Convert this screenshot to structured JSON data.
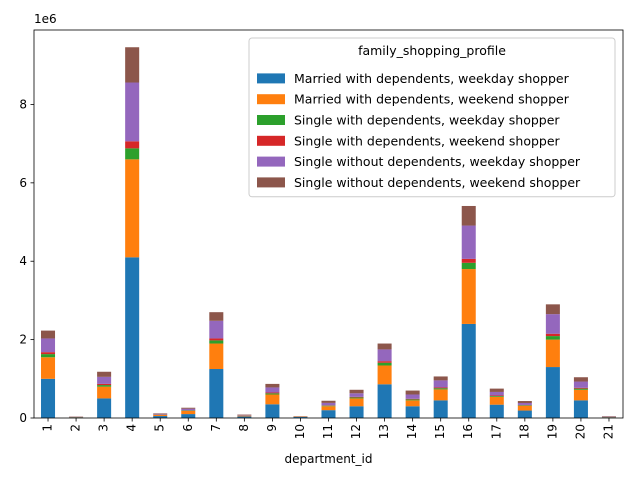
{
  "chart_data": {
    "type": "bar",
    "stacked": true,
    "xlabel": "department_id",
    "ylabel": "",
    "offset_text": "1e6",
    "ylim": [
      0,
      9900000
    ],
    "yticks": [
      0,
      2000000,
      4000000,
      6000000,
      8000000
    ],
    "ytick_labels": [
      "0",
      "2",
      "4",
      "6",
      "8"
    ],
    "x_tick_rotation": "vertical",
    "categories": [
      "1",
      "2",
      "3",
      "4",
      "5",
      "6",
      "7",
      "8",
      "9",
      "10",
      "11",
      "12",
      "13",
      "14",
      "15",
      "16",
      "17",
      "18",
      "19",
      "20",
      "21"
    ],
    "legend": {
      "title": "family_shopping_profile",
      "placement": "upper right"
    },
    "series": [
      {
        "name": "Married with dependents, weekday shopper",
        "color": "#1f77b4",
        "values": [
          1000000,
          20000,
          500000,
          4100000,
          50000,
          100000,
          1250000,
          40000,
          350000,
          25000,
          200000,
          300000,
          860000,
          300000,
          450000,
          2400000,
          340000,
          190000,
          1300000,
          450000,
          20000
        ]
      },
      {
        "name": "Married with dependents, weekend shopper",
        "color": "#ff7f0e",
        "values": [
          550000,
          10000,
          300000,
          2500000,
          30000,
          80000,
          650000,
          20000,
          250000,
          10000,
          100000,
          200000,
          480000,
          150000,
          280000,
          1400000,
          200000,
          120000,
          700000,
          270000,
          10000
        ]
      },
      {
        "name": "Single with dependents, weekday shopper",
        "color": "#2ca02c",
        "values": [
          80000,
          2000,
          40000,
          280000,
          5000,
          10000,
          80000,
          3000,
          30000,
          2000,
          15000,
          25000,
          70000,
          25000,
          30000,
          160000,
          20000,
          15000,
          90000,
          30000,
          2000
        ]
      },
      {
        "name": "Single with dependents, weekend shopper",
        "color": "#d62728",
        "values": [
          50000,
          1000,
          30000,
          180000,
          3000,
          7000,
          50000,
          2000,
          20000,
          1000,
          10000,
          15000,
          40000,
          15000,
          20000,
          100000,
          15000,
          8000,
          60000,
          20000,
          1000
        ]
      },
      {
        "name": "Single without dependents, weekday shopper",
        "color": "#9467bd",
        "values": [
          350000,
          5000,
          180000,
          1500000,
          20000,
          40000,
          450000,
          15000,
          130000,
          5000,
          60000,
          90000,
          300000,
          110000,
          180000,
          850000,
          90000,
          50000,
          500000,
          160000,
          10000
        ]
      },
      {
        "name": "Single without dependents, weekend shopper",
        "color": "#8c564b",
        "values": [
          200000,
          2000,
          130000,
          900000,
          12000,
          25000,
          220000,
          10000,
          90000,
          4000,
          55000,
          90000,
          150000,
          100000,
          100000,
          500000,
          85000,
          50000,
          250000,
          110000,
          7000
        ]
      }
    ]
  }
}
